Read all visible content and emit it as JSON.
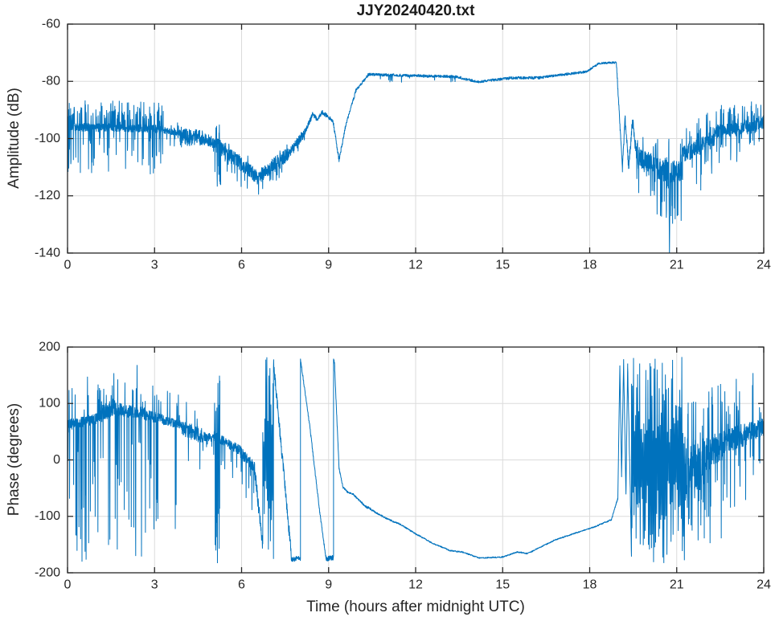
{
  "figure": {
    "background": "#ffffff",
    "line_color": "#0072BD",
    "axis_color": "#262626",
    "grid_color": "#dbdbdb"
  },
  "chart_data": [
    {
      "type": "line",
      "title": "JJY20240420.txt",
      "xlabel": "",
      "ylabel": "Amplitude (dB)",
      "xlim": [
        0,
        24
      ],
      "ylim": [
        -140,
        -60
      ],
      "xticks": [
        0,
        3,
        6,
        9,
        12,
        15,
        18,
        21,
        24
      ],
      "yticks": [
        -140,
        -120,
        -100,
        -80,
        -60
      ],
      "grid": true,
      "legend": "none",
      "seed": 11,
      "segment_legend": "x0,x1 hours UTC; y0,y1 baseline dB; n noise amplitude; d/pd downward spike depth+probability; u/pu upward spike height+probability; mode V = single spike to tip; mode band = fill between y0..y1",
      "segments": [
        {
          "x0": 0,
          "x1": 0.06,
          "y0": -97,
          "y1": -96,
          "n": 2.5,
          "d": 18,
          "pd": 0.3,
          "u": 9,
          "pu": 0.2
        },
        {
          "x0": 0.06,
          "x1": 3.3,
          "y0": -96,
          "y1": -96.6,
          "n": 1.5,
          "d": 16,
          "pd": 0.1,
          "u": 9.5,
          "pu": 0.18
        },
        {
          "x0": 3.3,
          "x1": 3.95,
          "y0": -97,
          "y1": -98.2,
          "n": 1.2,
          "d": 6,
          "pd": 0.05,
          "u": 4,
          "pu": 0.06
        },
        {
          "x0": 3.95,
          "x1": 4.65,
          "y0": -99.2,
          "y1": -99.8,
          "n": 2.9,
          "d": 4,
          "pd": 0.08,
          "u": 3,
          "pu": 0.08
        },
        {
          "x0": 4.65,
          "x1": 5.08,
          "y0": -100.3,
          "y1": -101.8,
          "n": 1.8,
          "d": 7,
          "pd": 0.05,
          "u": 3,
          "pu": 0.04
        },
        {
          "x0": 5.08,
          "x1": 5.28,
          "y0": -102.3,
          "y1": -102.8,
          "n": 2.6,
          "d": 19,
          "pd": 0.25,
          "u": 8,
          "pu": 0.15
        },
        {
          "x0": 5.28,
          "x1": 6.55,
          "y0": -103.5,
          "y1": -113.5,
          "n": 2.6,
          "d": 8,
          "pd": 0.06,
          "u": 5,
          "pu": 0.05
        },
        {
          "x0": 6.55,
          "x1": 7.6,
          "y0": -113.5,
          "y1": -105.5,
          "n": 2.6,
          "d": 7,
          "pd": 0.06,
          "u": 4,
          "pu": 0.04
        },
        {
          "x0": 7.6,
          "x1": 8.2,
          "y0": -105.5,
          "y1": -97.5,
          "n": 1.7,
          "d": 5,
          "pd": 0.05
        },
        {
          "x0": 8.2,
          "x1": 8.45,
          "y0": -97.5,
          "y1": -91.5,
          "n": 1
        },
        {
          "x0": 8.45,
          "x1": 8.62,
          "y0": -91.5,
          "y1": -93.3,
          "n": 0.9
        },
        {
          "x0": 8.62,
          "x1": 8.78,
          "y0": -93.3,
          "y1": -90.8,
          "n": 0.8
        },
        {
          "x0": 8.78,
          "x1": 9.15,
          "y0": -90.8,
          "y1": -93.8,
          "n": 0.8
        },
        {
          "x0": 9.15,
          "x1": 9.36,
          "y0": -93.8,
          "y1": -107.5,
          "n": 0.9
        },
        {
          "x0": 9.36,
          "x1": 9.6,
          "y0": -107.5,
          "y1": -95,
          "n": 0.8
        },
        {
          "x0": 9.6,
          "x1": 9.95,
          "y0": -95,
          "y1": -83,
          "n": 0.7
        },
        {
          "x0": 9.95,
          "x1": 10.35,
          "y0": -83,
          "y1": -77.9,
          "n": 0.6
        },
        {
          "x0": 10.35,
          "x1": 13.4,
          "y0": -77.6,
          "y1": -78.4,
          "n": 0.55,
          "d": 2.5,
          "pd": 0.03
        },
        {
          "x0": 13.4,
          "x1": 14.15,
          "y0": -78.4,
          "y1": -80.2,
          "n": 0.5
        },
        {
          "x0": 14.15,
          "x1": 15.3,
          "y0": -80.2,
          "y1": -78.8,
          "n": 0.5
        },
        {
          "x0": 15.3,
          "x1": 16.4,
          "y0": -78.8,
          "y1": -78.7,
          "n": 0.55
        },
        {
          "x0": 16.4,
          "x1": 17.9,
          "y0": -78.5,
          "y1": -76.6,
          "n": 0.5
        },
        {
          "x0": 17.9,
          "x1": 18.3,
          "y0": -76.6,
          "y1": -73.8,
          "n": 0.45
        },
        {
          "x0": 18.3,
          "x1": 18.92,
          "y0": -73.7,
          "y1": -73.4,
          "n": 0.4
        },
        {
          "x0": 18.92,
          "x1": 19.13,
          "y0": -73.5,
          "y1": -111,
          "n": 1.2
        },
        {
          "x0": 19.13,
          "x1": 19.22,
          "y0": -111,
          "y1": -92.5,
          "n": 1.5
        },
        {
          "x0": 19.22,
          "x1": 19.34,
          "y0": -92.5,
          "y1": -110,
          "n": 2
        },
        {
          "x0": 19.34,
          "x1": 19.48,
          "y0": -110,
          "y1": -93.5,
          "n": 2
        },
        {
          "x0": 19.48,
          "x1": 19.62,
          "y0": -93.5,
          "y1": -106,
          "n": 2.5
        },
        {
          "x0": 19.62,
          "x1": 20.3,
          "y0": -106,
          "y1": -109.5,
          "n": 3.5,
          "d": 13,
          "pd": 0.1,
          "u": 8,
          "pu": 0.08
        },
        {
          "x0": 20.3,
          "x1": 20.73,
          "y0": -110.5,
          "y1": -111.5,
          "n": 4,
          "d": 19,
          "pd": 0.1,
          "u": 13,
          "pu": 0.08
        },
        {
          "mode": "V",
          "x0": 20.73,
          "x1": 20.77,
          "y0": -112,
          "tip": -141
        },
        {
          "x0": 20.77,
          "x1": 21.2,
          "y0": -111.5,
          "y1": -112,
          "n": 4,
          "d": 19,
          "pd": 0.1,
          "u": 13,
          "pu": 0.08
        },
        {
          "x0": 21.2,
          "x1": 22.3,
          "y0": -106,
          "y1": -99.5,
          "n": 3.2,
          "d": 16,
          "pd": 0.08,
          "u": 10,
          "pu": 0.12
        },
        {
          "x0": 22.3,
          "x1": 23.3,
          "y0": -97.5,
          "y1": -96.5,
          "n": 2.4,
          "d": 12,
          "pd": 0.07,
          "u": 9,
          "pu": 0.12
        },
        {
          "x0": 23.3,
          "x1": 24,
          "y0": -96,
          "y1": -94.5,
          "n": 2.2,
          "d": 9,
          "pd": 0.07,
          "u": 8.5,
          "pu": 0.13
        }
      ]
    },
    {
      "type": "line",
      "title": "",
      "xlabel": "Time (hours after midnight UTC)",
      "ylabel": "Phase (degrees)",
      "xlim": [
        0,
        24
      ],
      "ylim": [
        -200,
        200
      ],
      "xticks": [
        0,
        3,
        6,
        9,
        12,
        15,
        18,
        21,
        24
      ],
      "yticks": [
        -200,
        -100,
        0,
        100,
        200
      ],
      "grid": true,
      "legend": "none",
      "seed": 7,
      "segment_legend": "x0,x1 hours UTC; y0,y1 baseline degrees; n noise amplitude; d/pd downward spike depth+probability; u/pu upward spike height+probability; mode band = phase-wrap block between y0..y1",
      "segments": [
        {
          "x0": 0,
          "x1": 0.08,
          "y0": 55,
          "y1": 62,
          "n": 14,
          "d": 230,
          "pd": 0.25,
          "u": 110,
          "pu": 0.2
        },
        {
          "x0": 0.08,
          "x1": 1,
          "y0": 63,
          "y1": 73,
          "n": 10,
          "d": 250,
          "pd": 0.09,
          "u": 100,
          "pu": 0.06
        },
        {
          "x0": 1,
          "x1": 1.65,
          "y0": 76,
          "y1": 96,
          "n": 15,
          "d": 260,
          "pd": 0.08,
          "u": 80,
          "pu": 0.1
        },
        {
          "x0": 1.65,
          "x1": 2.65,
          "y0": 90,
          "y1": 82,
          "n": 12,
          "d": 255,
          "pd": 0.08,
          "u": 88,
          "pu": 0.07
        },
        {
          "x0": 2.65,
          "x1": 3.35,
          "y0": 80,
          "y1": 71,
          "n": 10,
          "d": 258,
          "pd": 0.08,
          "u": 60,
          "pu": 0.05
        },
        {
          "x0": 3.35,
          "x1": 3.95,
          "y0": 70,
          "y1": 61,
          "n": 8,
          "d": 200,
          "pd": 0.04,
          "u": 55,
          "pu": 0.05
        },
        {
          "x0": 3.95,
          "x1": 4.65,
          "y0": 57,
          "y1": 42,
          "n": 14,
          "d": 70,
          "pd": 0.06,
          "u": 55,
          "pu": 0.05
        },
        {
          "x0": 4.65,
          "x1": 5.05,
          "y0": 42,
          "y1": 39,
          "n": 8,
          "d": 45,
          "pd": 0.04
        },
        {
          "x0": 5.05,
          "x1": 5.25,
          "y0": 41,
          "y1": 40,
          "n": 10,
          "d": 225,
          "pd": 0.3,
          "u": 140,
          "pu": 0.3
        },
        {
          "x0": 5.25,
          "x1": 5.95,
          "y0": 37,
          "y1": 17,
          "n": 9,
          "d": 60,
          "pd": 0.04
        },
        {
          "x0": 5.95,
          "x1": 6.45,
          "y0": 15,
          "y1": -14,
          "n": 11,
          "d": 85,
          "pd": 0.05
        },
        {
          "x0": 6.45,
          "x1": 6.73,
          "y0": -18,
          "y1": -152,
          "n": 13
        },
        {
          "mode": "band",
          "x0": 6.73,
          "x1": 7.1,
          "y0": -182,
          "y1": 182,
          "step": 3
        },
        {
          "x0": 7.1,
          "x1": 7.73,
          "y0": 172,
          "y1": -176,
          "n": 11
        },
        {
          "x0": 7.73,
          "x1": 8.03,
          "y0": -176,
          "y1": -174,
          "n": 5
        },
        {
          "x0": 8.03,
          "x1": 8.35,
          "y0": 178,
          "y1": 60,
          "n": 3
        },
        {
          "x0": 8.35,
          "x1": 8.7,
          "y0": 60,
          "y1": -95,
          "n": 3
        },
        {
          "x0": 8.7,
          "x1": 8.92,
          "y0": -95,
          "y1": -178,
          "n": 3
        },
        {
          "x0": 8.92,
          "x1": 9.17,
          "y0": -175,
          "y1": -173,
          "n": 5
        },
        {
          "x0": 9.17,
          "x1": 9.21,
          "y0": 180,
          "y1": 168,
          "n": 3
        },
        {
          "x0": 9.21,
          "x1": 9.36,
          "y0": 160,
          "y1": -15,
          "n": 3
        },
        {
          "x0": 9.36,
          "x1": 9.5,
          "y0": -15,
          "y1": -49,
          "n": 2.5
        },
        {
          "x0": 9.5,
          "x1": 9.66,
          "y0": -49,
          "y1": -57,
          "n": 2
        },
        {
          "x0": 9.66,
          "x1": 9.85,
          "y0": -57,
          "y1": -61,
          "n": 2
        },
        {
          "x0": 9.85,
          "x1": 10.28,
          "y0": -61,
          "y1": -83,
          "n": 2
        },
        {
          "x0": 10.28,
          "x1": 10.45,
          "y0": -83,
          "y1": -87,
          "n": 2.5
        },
        {
          "x0": 10.45,
          "x1": 11,
          "y0": -88,
          "y1": -104,
          "n": 1.8
        },
        {
          "x0": 11,
          "x1": 11.5,
          "y0": -104,
          "y1": -115,
          "n": 1.6
        },
        {
          "x0": 11.5,
          "x1": 12,
          "y0": -115,
          "y1": -131,
          "n": 1.5
        },
        {
          "x0": 12,
          "x1": 12.6,
          "y0": -131,
          "y1": -148,
          "n": 1.5
        },
        {
          "x0": 12.6,
          "x1": 13.2,
          "y0": -148,
          "y1": -161,
          "n": 1.4
        },
        {
          "x0": 13.2,
          "x1": 13.6,
          "y0": -161,
          "y1": -163,
          "n": 1.4
        },
        {
          "x0": 13.6,
          "x1": 14.2,
          "y0": -163,
          "y1": -174,
          "n": 1.3
        },
        {
          "x0": 14.2,
          "x1": 15,
          "y0": -174,
          "y1": -172,
          "n": 1.3
        },
        {
          "x0": 15,
          "x1": 15.5,
          "y0": -172,
          "y1": -163,
          "n": 1.3
        },
        {
          "x0": 15.5,
          "x1": 15.85,
          "y0": -163,
          "y1": -166,
          "n": 1.3
        },
        {
          "x0": 15.85,
          "x1": 16.8,
          "y0": -166,
          "y1": -142,
          "n": 1.3
        },
        {
          "x0": 16.8,
          "x1": 17.6,
          "y0": -142,
          "y1": -128,
          "n": 1.3
        },
        {
          "x0": 17.6,
          "x1": 18.2,
          "y0": -128,
          "y1": -118,
          "n": 1.3
        },
        {
          "x0": 18.2,
          "x1": 18.75,
          "y0": -118,
          "y1": -106,
          "n": 1.4
        },
        {
          "x0": 18.75,
          "x1": 18.97,
          "y0": -106,
          "y1": -68,
          "n": 2
        },
        {
          "x0": 18.97,
          "x1": 19.04,
          "y0": -68,
          "y1": 168,
          "n": 4
        },
        {
          "x0": 19.04,
          "x1": 19.1,
          "y0": 168,
          "y1": -28,
          "n": 4
        },
        {
          "x0": 19.1,
          "x1": 19.17,
          "y0": -28,
          "y1": 174,
          "n": 4
        },
        {
          "x0": 19.17,
          "x1": 19.25,
          "y0": 174,
          "y1": -60,
          "n": 5
        },
        {
          "x0": 19.25,
          "x1": 19.31,
          "y0": -60,
          "y1": 170,
          "n": 5
        },
        {
          "x0": 19.31,
          "x1": 19.44,
          "y0": 170,
          "y1": -165,
          "n": 10
        },
        {
          "mode": "band",
          "x0": 19.44,
          "x1": 21.3,
          "y0": -183,
          "y1": 183,
          "step": 3
        },
        {
          "x0": 21.3,
          "x1": 21.95,
          "y0": -25,
          "y1": -5,
          "n": 45,
          "d": 150,
          "pd": 0.13,
          "u": 130,
          "pu": 0.13
        },
        {
          "x0": 21.95,
          "x1": 22.6,
          "y0": 8,
          "y1": 25,
          "n": 30,
          "d": 165,
          "pd": 0.09,
          "u": 120,
          "pu": 0.09
        },
        {
          "x0": 22.6,
          "x1": 23.4,
          "y0": 33,
          "y1": 45,
          "n": 22,
          "d": 130,
          "pd": 0.07,
          "u": 125,
          "pu": 0.08
        },
        {
          "x0": 23.4,
          "x1": 24,
          "y0": 48,
          "y1": 58,
          "n": 17,
          "d": 95,
          "pd": 0.06,
          "u": 115,
          "pu": 0.07
        }
      ]
    }
  ]
}
